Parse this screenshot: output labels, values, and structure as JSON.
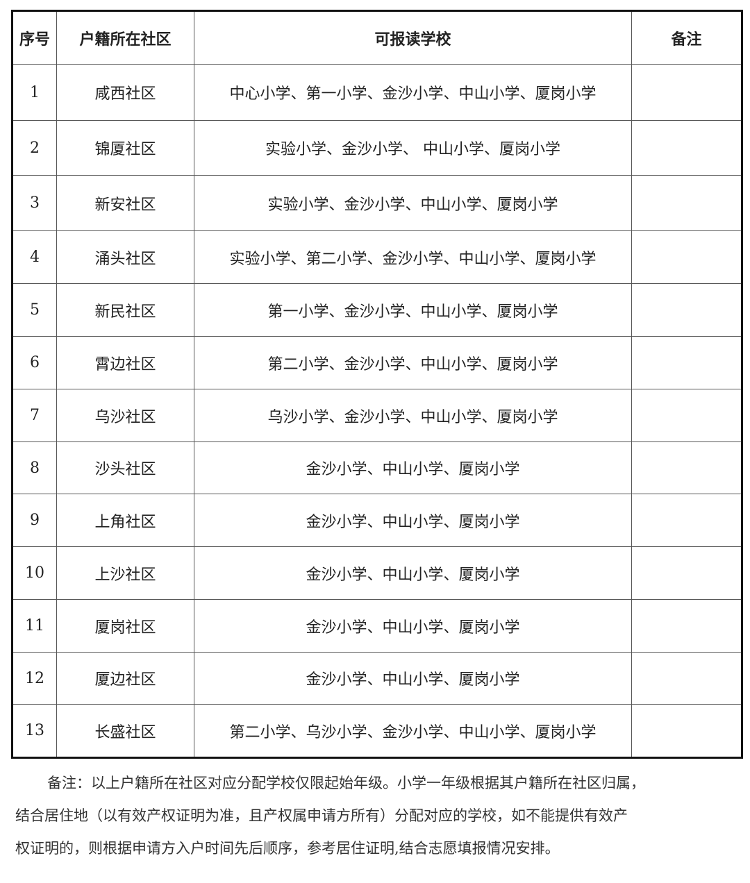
{
  "table": {
    "headers": [
      "序号",
      "户籍所在社区",
      "可报读学校",
      "备注"
    ],
    "rows": [
      {
        "no": "1",
        "community": "咸西社区",
        "schools": "中心小学、第一小学、金沙小学、中山小学、厦岗小学",
        "remark": ""
      },
      {
        "no": "2",
        "community": "锦厦社区",
        "schools": "实验小学、金沙小学、 中山小学、厦岗小学",
        "remark": ""
      },
      {
        "no": "3",
        "community": "新安社区",
        "schools": "实验小学、金沙小学、中山小学、厦岗小学",
        "remark": ""
      },
      {
        "no": "4",
        "community": "涌头社区",
        "schools": "实验小学、第二小学、金沙小学、中山小学、厦岗小学",
        "remark": ""
      },
      {
        "no": "5",
        "community": "新民社区",
        "schools": "第一小学、金沙小学、中山小学、厦岗小学",
        "remark": ""
      },
      {
        "no": "6",
        "community": "霄边社区",
        "schools": "第二小学、金沙小学、中山小学、厦岗小学",
        "remark": ""
      },
      {
        "no": "7",
        "community": "乌沙社区",
        "schools": "乌沙小学、金沙小学、中山小学、厦岗小学",
        "remark": ""
      },
      {
        "no": "8",
        "community": "沙头社区",
        "schools": "金沙小学、中山小学、厦岗小学",
        "remark": ""
      },
      {
        "no": "9",
        "community": "上角社区",
        "schools": "金沙小学、中山小学、厦岗小学",
        "remark": ""
      },
      {
        "no": "10",
        "community": "上沙社区",
        "schools": "金沙小学、中山小学、厦岗小学",
        "remark": ""
      },
      {
        "no": "11",
        "community": "厦岗社区",
        "schools": "金沙小学、中山小学、厦岗小学",
        "remark": ""
      },
      {
        "no": "12",
        "community": "厦边社区",
        "schools": "金沙小学、中山小学、厦岗小学",
        "remark": ""
      },
      {
        "no": "13",
        "community": "长盛社区",
        "schools": "第二小学、乌沙小学、金沙小学、中山小学、厦岗小学",
        "remark": ""
      }
    ]
  },
  "note": {
    "lines": [
      "备注：以上户籍所在社区对应分配学校仅限起始年级。小学一年级根据其户籍所在社区归属，",
      "结合居住地（以有效产权证明为准，且产权属申请方所有）分配对应的学校，如不能提供有效产",
      "权证明的，则根据申请方入户时间先后顺序，参考居住证明,结合志愿填报情况安排。"
    ]
  }
}
